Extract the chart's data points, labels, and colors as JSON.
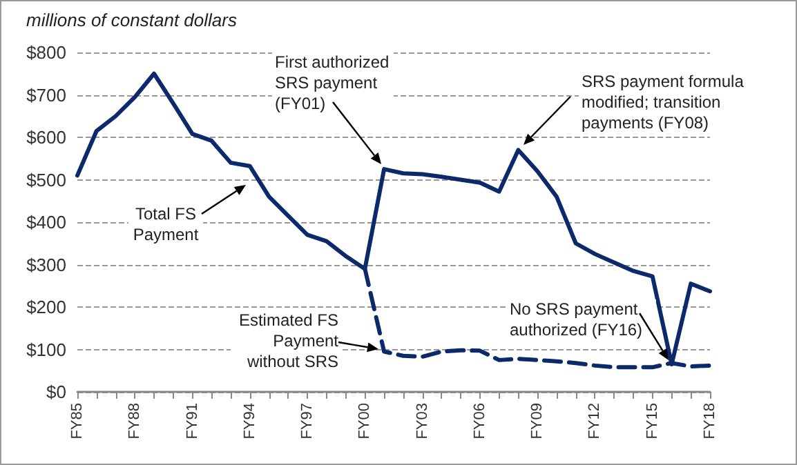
{
  "chart_data": {
    "type": "line",
    "ylabel": "millions of constant dollars",
    "categories": [
      "FY85",
      null,
      null,
      "FY88",
      null,
      null,
      "FY91",
      null,
      null,
      "FY94",
      null,
      null,
      "FY97",
      null,
      null,
      "FY00",
      null,
      null,
      "FY03",
      null,
      null,
      "FY06",
      null,
      null,
      "FY09",
      null,
      null,
      "FY12",
      null,
      null,
      "FY15",
      null,
      null,
      "FY18"
    ],
    "series": [
      {
        "color": "#0c2a6b",
        "line_style": "solid",
        "values": [
          510,
          615,
          650,
          695,
          750,
          680,
          608,
          592,
          540,
          532,
          460,
          415,
          370,
          355,
          320,
          290,
          525,
          515,
          513,
          507,
          500,
          493,
          472,
          570,
          520,
          460,
          350,
          325,
          305,
          285,
          272,
          65,
          255,
          237
        ]
      },
      {
        "color": "#0c2a6b",
        "line_style": "dashed",
        "values": [
          null,
          null,
          null,
          null,
          null,
          null,
          null,
          null,
          null,
          null,
          null,
          null,
          null,
          null,
          null,
          290,
          95,
          85,
          83,
          95,
          98,
          97,
          75,
          78,
          75,
          72,
          68,
          62,
          58,
          58,
          58,
          68,
          60,
          62
        ]
      }
    ],
    "ylim": [
      0,
      800
    ],
    "yticks": [
      {
        "value": 0,
        "label": "$0"
      },
      {
        "value": 100,
        "label": "$100"
      },
      {
        "value": 200,
        "label": "$200"
      },
      {
        "value": 300,
        "label": "$300"
      },
      {
        "value": 400,
        "label": "$400"
      },
      {
        "value": 500,
        "label": "$500"
      },
      {
        "value": 600,
        "label": "$600"
      },
      {
        "value": 700,
        "label": "$700"
      },
      {
        "value": 800,
        "label": "$800"
      }
    ],
    "grid": "y",
    "marker": "none",
    "annotations": [
      "First authorized SRS payment (FY01)",
      "SRS payment formula modified; transition payments (FY08)",
      "Total FS Payment",
      "Estimated FS Payment without SRS",
      {
        "text": "No SRS payment authorized (FY16)",
        "y": 65
      }
    ]
  }
}
